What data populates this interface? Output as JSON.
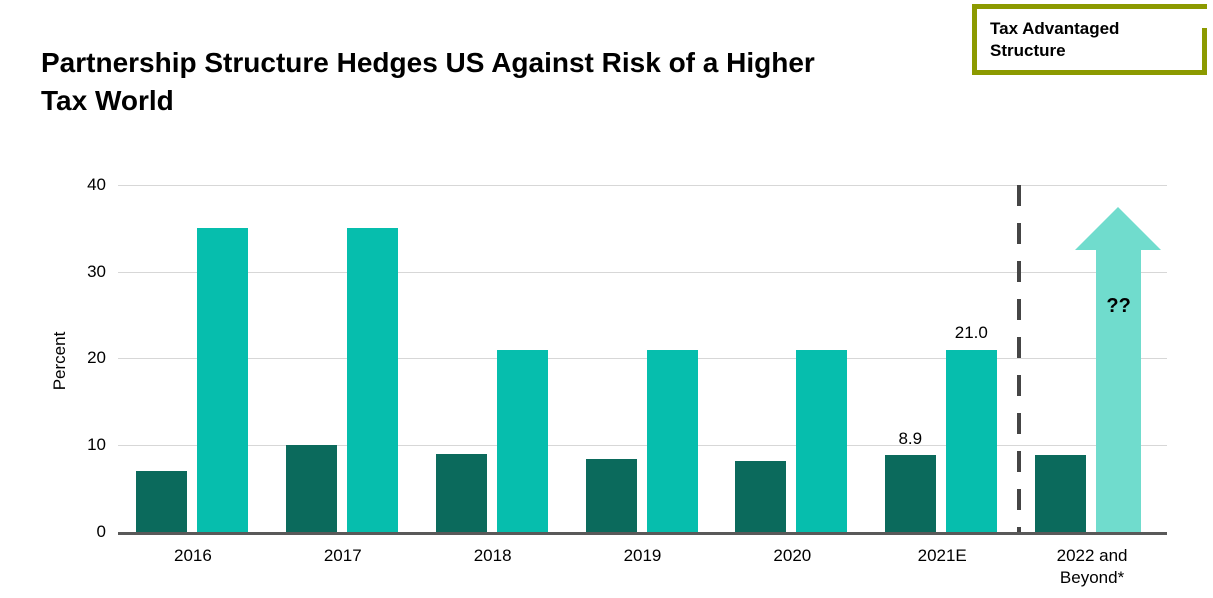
{
  "badge": {
    "label": "Tax Advantaged Structure",
    "border_color": "#8C9A00"
  },
  "chart_data": {
    "type": "bar",
    "title": "Partnership Structure Hedges US Against Risk of a Higher Tax World",
    "xlabel": "",
    "ylabel": "Percent",
    "ylim": [
      0,
      40
    ],
    "yticks": [
      "40",
      "30",
      "20",
      "10",
      "0"
    ],
    "grid": true,
    "legend": false,
    "categories": [
      "2016",
      "2017",
      "2018",
      "2019",
      "2020",
      "2021E",
      "2022 and Beyond*"
    ],
    "series": [
      {
        "name": "dark-teal-bars",
        "color": "#0B6A5C",
        "values": [
          7.0,
          10.0,
          9.0,
          8.4,
          8.2,
          8.9,
          8.9
        ]
      },
      {
        "name": "light-teal-bars",
        "color": "#06BEAD",
        "values": [
          35,
          35,
          21,
          21,
          21,
          21,
          null
        ]
      }
    ],
    "value_labels": {
      "5": {
        "series1": "8.9",
        "series2": "21.0"
      }
    },
    "arrow": {
      "label": "??",
      "tip_value": 37.5,
      "color": "#70DCCD"
    },
    "divider_after_index": 5
  }
}
